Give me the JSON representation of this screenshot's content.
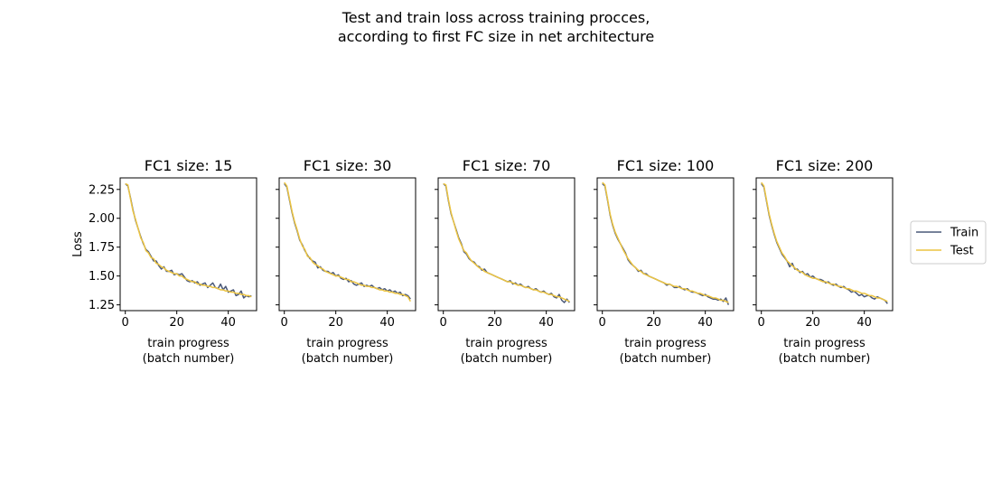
{
  "figure": {
    "title_line1": "Test and train loss across training procces,",
    "title_line2": "according to first FC size in net architecture"
  },
  "legend": {
    "placement": "right",
    "items": [
      {
        "label": "Train",
        "color": "#4a5878"
      },
      {
        "label": "Test",
        "color": "#ecc441"
      }
    ]
  },
  "chart_data": [
    {
      "type": "line",
      "title": "FC1 size: 15",
      "xlabel": "train progress\n(batch number)",
      "ylabel": "Loss",
      "xlim": [
        -2,
        51
      ],
      "ylim": [
        1.2,
        2.35
      ],
      "xticks": [
        0,
        20,
        40
      ],
      "xticklabels": [
        "0",
        "20",
        "40"
      ],
      "yticks": [
        1.25,
        1.5,
        1.75,
        2.0,
        2.25
      ],
      "yticklabels": [
        "1.25",
        "1.50",
        "1.75",
        "2.00",
        "2.25"
      ],
      "x_start": 0,
      "series": [
        {
          "name": "Train",
          "values": [
            2.3,
            2.28,
            2.18,
            2.07,
            1.98,
            1.91,
            1.84,
            1.78,
            1.73,
            1.71,
            1.67,
            1.63,
            1.63,
            1.59,
            1.56,
            1.58,
            1.54,
            1.54,
            1.55,
            1.51,
            1.52,
            1.51,
            1.52,
            1.49,
            1.46,
            1.45,
            1.46,
            1.44,
            1.45,
            1.42,
            1.43,
            1.44,
            1.4,
            1.42,
            1.44,
            1.4,
            1.39,
            1.43,
            1.38,
            1.41,
            1.36,
            1.37,
            1.38,
            1.33,
            1.34,
            1.37,
            1.31,
            1.33,
            1.32,
            1.33
          ]
        },
        {
          "name": "Test",
          "values": [
            2.3,
            2.29,
            2.17,
            2.06,
            1.99,
            1.91,
            1.83,
            1.79,
            1.72,
            1.7,
            1.66,
            1.65,
            1.61,
            1.6,
            1.58,
            1.57,
            1.55,
            1.54,
            1.53,
            1.52,
            1.52,
            1.5,
            1.5,
            1.48,
            1.47,
            1.46,
            1.45,
            1.45,
            1.43,
            1.43,
            1.42,
            1.42,
            1.41,
            1.41,
            1.4,
            1.4,
            1.39,
            1.38,
            1.38,
            1.37,
            1.37,
            1.36,
            1.36,
            1.35,
            1.35,
            1.34,
            1.34,
            1.33,
            1.33,
            1.32
          ]
        }
      ]
    },
    {
      "type": "line",
      "title": "FC1 size: 30",
      "xlabel": "train progress\n(batch number)",
      "ylabel": "",
      "xlim": [
        -2,
        51
      ],
      "ylim": [
        1.2,
        2.35
      ],
      "xticks": [
        0,
        20,
        40
      ],
      "xticklabels": [
        "0",
        "20",
        "40"
      ],
      "yticks": [
        1.25,
        1.5,
        1.75,
        2.0,
        2.25
      ],
      "yticklabels": [],
      "x_start": 0,
      "series": [
        {
          "name": "Train",
          "values": [
            2.3,
            2.27,
            2.16,
            2.05,
            1.96,
            1.89,
            1.81,
            1.77,
            1.72,
            1.68,
            1.65,
            1.63,
            1.62,
            1.57,
            1.58,
            1.55,
            1.54,
            1.54,
            1.52,
            1.53,
            1.5,
            1.51,
            1.48,
            1.47,
            1.48,
            1.45,
            1.46,
            1.43,
            1.42,
            1.43,
            1.44,
            1.41,
            1.42,
            1.41,
            1.42,
            1.4,
            1.39,
            1.4,
            1.38,
            1.39,
            1.37,
            1.38,
            1.36,
            1.37,
            1.35,
            1.36,
            1.33,
            1.34,
            1.33,
            1.3
          ]
        },
        {
          "name": "Test",
          "values": [
            2.31,
            2.28,
            2.17,
            2.06,
            1.97,
            1.9,
            1.82,
            1.76,
            1.73,
            1.67,
            1.66,
            1.62,
            1.6,
            1.59,
            1.57,
            1.56,
            1.54,
            1.53,
            1.52,
            1.51,
            1.5,
            1.5,
            1.49,
            1.48,
            1.47,
            1.47,
            1.45,
            1.45,
            1.44,
            1.43,
            1.42,
            1.42,
            1.41,
            1.41,
            1.4,
            1.4,
            1.39,
            1.38,
            1.38,
            1.37,
            1.37,
            1.36,
            1.36,
            1.35,
            1.35,
            1.34,
            1.34,
            1.33,
            1.32,
            1.28
          ]
        }
      ]
    },
    {
      "type": "line",
      "title": "FC1 size: 70",
      "xlabel": "train progress\n(batch number)",
      "ylabel": "",
      "xlim": [
        -2,
        51
      ],
      "ylim": [
        1.2,
        2.35
      ],
      "xticks": [
        0,
        20,
        40
      ],
      "xticklabels": [
        "0",
        "20",
        "40"
      ],
      "yticks": [
        1.25,
        1.5,
        1.75,
        2.0,
        2.25
      ],
      "yticklabels": [],
      "x_start": 0,
      "series": [
        {
          "name": "Train",
          "values": [
            2.3,
            2.28,
            2.15,
            2.04,
            1.97,
            1.9,
            1.83,
            1.78,
            1.71,
            1.69,
            1.65,
            1.63,
            1.62,
            1.59,
            1.58,
            1.55,
            1.56,
            1.53,
            1.52,
            1.51,
            1.5,
            1.49,
            1.48,
            1.47,
            1.46,
            1.45,
            1.46,
            1.43,
            1.44,
            1.42,
            1.43,
            1.41,
            1.4,
            1.41,
            1.39,
            1.38,
            1.39,
            1.37,
            1.36,
            1.37,
            1.35,
            1.34,
            1.35,
            1.32,
            1.31,
            1.34,
            1.29,
            1.27,
            1.3,
            1.27
          ]
        },
        {
          "name": "Test",
          "values": [
            2.3,
            2.29,
            2.16,
            2.05,
            1.97,
            1.89,
            1.82,
            1.77,
            1.72,
            1.7,
            1.66,
            1.63,
            1.61,
            1.59,
            1.57,
            1.56,
            1.54,
            1.53,
            1.52,
            1.51,
            1.5,
            1.49,
            1.48,
            1.47,
            1.46,
            1.45,
            1.45,
            1.44,
            1.43,
            1.42,
            1.42,
            1.41,
            1.4,
            1.4,
            1.39,
            1.38,
            1.38,
            1.37,
            1.36,
            1.36,
            1.35,
            1.34,
            1.34,
            1.33,
            1.32,
            1.32,
            1.31,
            1.3,
            1.29,
            1.28
          ]
        }
      ]
    },
    {
      "type": "line",
      "title": "FC1 size: 100",
      "xlabel": "train progress\n(batch number)",
      "ylabel": "",
      "xlim": [
        -2,
        51
      ],
      "ylim": [
        1.2,
        2.35
      ],
      "xticks": [
        0,
        20,
        40
      ],
      "xticklabels": [
        "0",
        "20",
        "40"
      ],
      "yticks": [
        1.25,
        1.5,
        1.75,
        2.0,
        2.25
      ],
      "yticklabels": [],
      "x_start": 0,
      "series": [
        {
          "name": "Train",
          "values": [
            2.3,
            2.28,
            2.16,
            2.03,
            1.94,
            1.87,
            1.82,
            1.78,
            1.74,
            1.7,
            1.64,
            1.61,
            1.59,
            1.57,
            1.54,
            1.55,
            1.52,
            1.52,
            1.5,
            1.49,
            1.48,
            1.47,
            1.46,
            1.45,
            1.44,
            1.42,
            1.43,
            1.42,
            1.4,
            1.4,
            1.41,
            1.39,
            1.38,
            1.39,
            1.37,
            1.36,
            1.36,
            1.35,
            1.34,
            1.33,
            1.34,
            1.32,
            1.31,
            1.3,
            1.3,
            1.29,
            1.3,
            1.28,
            1.31,
            1.25
          ]
        },
        {
          "name": "Test",
          "values": [
            2.31,
            2.29,
            2.17,
            2.04,
            1.95,
            1.88,
            1.83,
            1.78,
            1.73,
            1.69,
            1.65,
            1.62,
            1.59,
            1.57,
            1.55,
            1.54,
            1.52,
            1.51,
            1.5,
            1.49,
            1.48,
            1.47,
            1.46,
            1.45,
            1.44,
            1.43,
            1.43,
            1.42,
            1.41,
            1.41,
            1.4,
            1.39,
            1.39,
            1.38,
            1.37,
            1.37,
            1.36,
            1.35,
            1.35,
            1.34,
            1.33,
            1.33,
            1.32,
            1.31,
            1.31,
            1.3,
            1.29,
            1.29,
            1.28,
            1.27
          ]
        }
      ]
    },
    {
      "type": "line",
      "title": "FC1 size: 200",
      "xlabel": "train progress\n(batch number)",
      "ylabel": "",
      "xlim": [
        -2,
        51
      ],
      "ylim": [
        1.2,
        2.35
      ],
      "xticks": [
        0,
        20,
        40
      ],
      "xticklabels": [
        "0",
        "20",
        "40"
      ],
      "yticks": [
        1.25,
        1.5,
        1.75,
        2.0,
        2.25
      ],
      "yticklabels": [],
      "x_start": 0,
      "series": [
        {
          "name": "Train",
          "values": [
            2.3,
            2.27,
            2.15,
            2.03,
            1.94,
            1.86,
            1.79,
            1.74,
            1.69,
            1.66,
            1.63,
            1.58,
            1.61,
            1.56,
            1.56,
            1.53,
            1.54,
            1.51,
            1.52,
            1.49,
            1.5,
            1.48,
            1.47,
            1.47,
            1.46,
            1.44,
            1.45,
            1.43,
            1.42,
            1.43,
            1.41,
            1.4,
            1.41,
            1.39,
            1.38,
            1.36,
            1.37,
            1.35,
            1.33,
            1.34,
            1.32,
            1.33,
            1.33,
            1.31,
            1.3,
            1.32,
            1.31,
            1.3,
            1.29,
            1.26
          ]
        },
        {
          "name": "Test",
          "values": [
            2.31,
            2.28,
            2.16,
            2.04,
            1.95,
            1.87,
            1.8,
            1.75,
            1.7,
            1.67,
            1.63,
            1.61,
            1.59,
            1.57,
            1.55,
            1.54,
            1.53,
            1.51,
            1.5,
            1.49,
            1.48,
            1.48,
            1.47,
            1.46,
            1.45,
            1.45,
            1.44,
            1.43,
            1.43,
            1.42,
            1.41,
            1.41,
            1.4,
            1.39,
            1.39,
            1.38,
            1.37,
            1.37,
            1.36,
            1.35,
            1.35,
            1.34,
            1.33,
            1.33,
            1.32,
            1.31,
            1.31,
            1.3,
            1.29,
            1.28
          ]
        }
      ]
    }
  ]
}
